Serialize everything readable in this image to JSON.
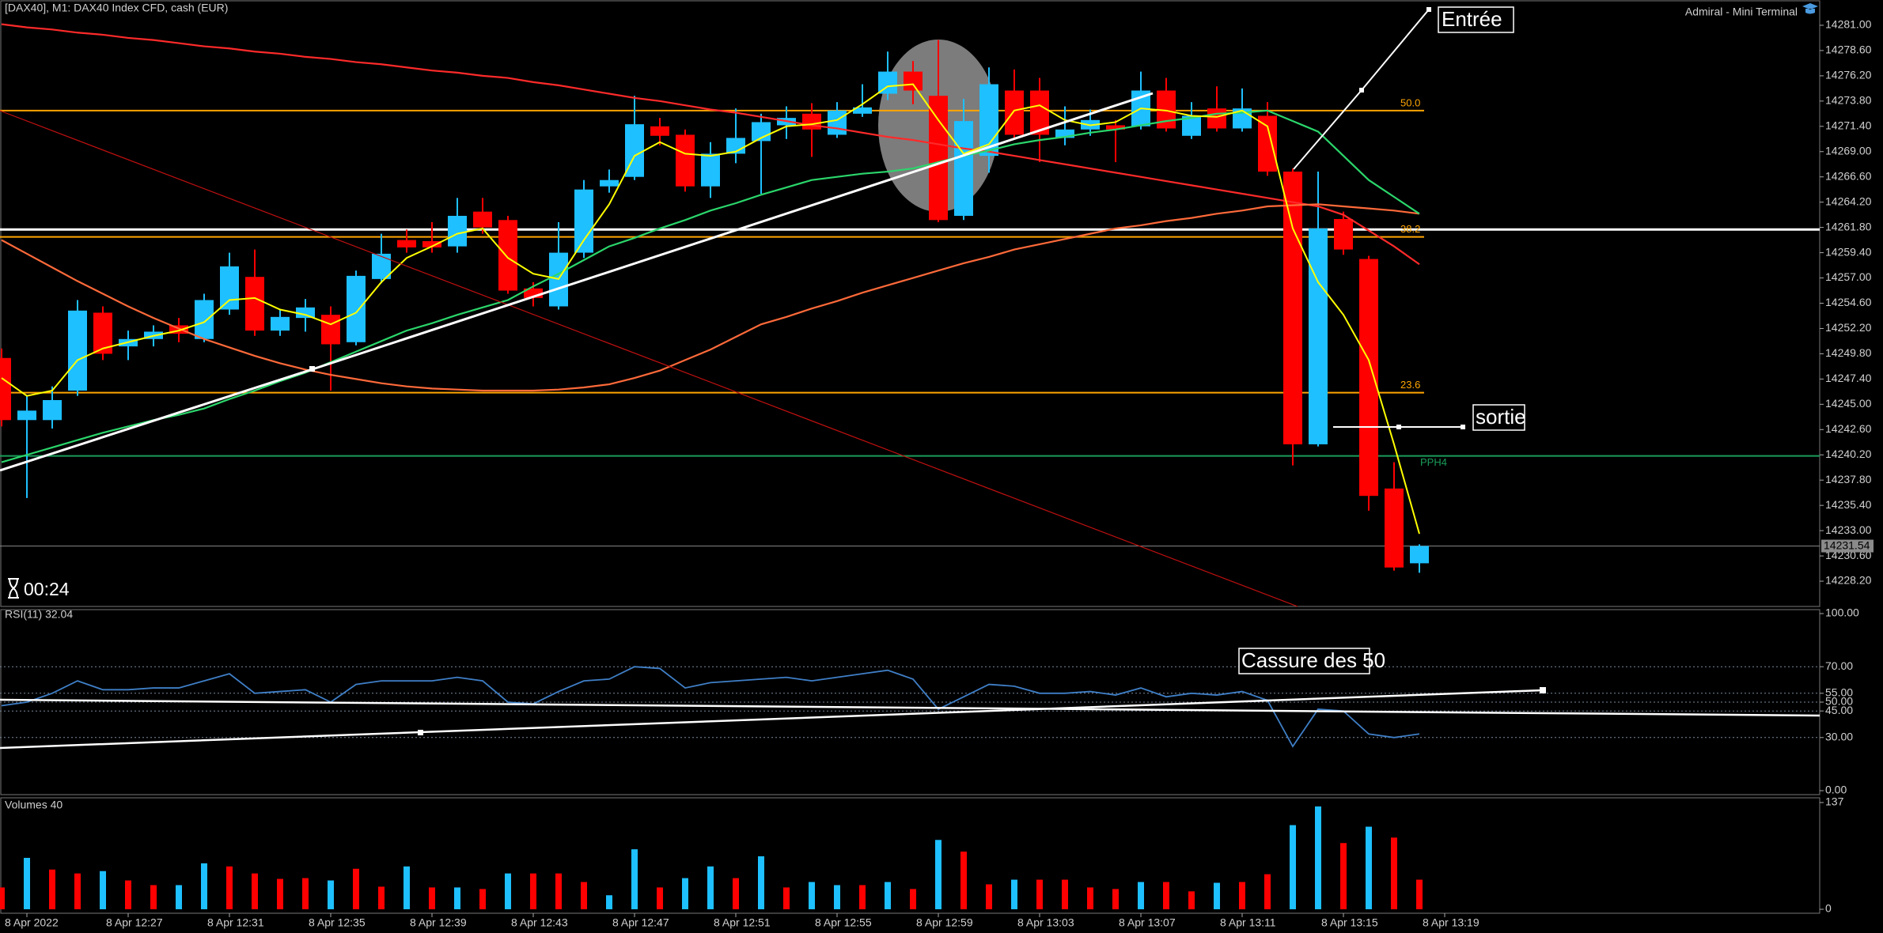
{
  "terminal_label": "Admiral - Mini Terminal",
  "timer": "00:24",
  "annotations": [
    {
      "text": "Entrée"
    },
    {
      "text": "sortie"
    },
    {
      "text": "Cassure des 50"
    }
  ],
  "chart_data": [
    {
      "type": "candlestick",
      "title": "[DAX40], M1:  DAX40 Index CFD, cash (EUR)",
      "up_color": "#1ec0ff",
      "down_color": "#ff0000",
      "open": [
        14249.4,
        14243.5,
        14243.5,
        14246.3,
        14253.7,
        14250.5,
        14251.2,
        14252.5,
        14251.2,
        14254.0,
        14257.1,
        14252.0,
        14253.2,
        14253.5,
        14250.9,
        14256.9,
        14260.6,
        14260.5,
        14260.0,
        14263.3,
        14262.5,
        14256.0,
        14254.3,
        14259.4,
        14265.7,
        14266.6,
        14271.4,
        14270.6,
        14265.7,
        14268.8,
        14270.0,
        14271.5,
        14272.6,
        14270.6,
        14272.6,
        14274.5,
        14276.6,
        14274.3,
        14262.9,
        14268.6,
        14274.8,
        14274.8,
        14270.3,
        14271.1,
        14271.5,
        14271.4,
        14274.8,
        14270.5,
        14273.1,
        14271.2,
        14272.4,
        14267.1,
        14241.2,
        14262.6,
        14258.8,
        14237.0,
        14229.9,
        null
      ],
      "high": [
        14250.3,
        14245.8,
        14246.7,
        14254.9,
        14254.3,
        14252.0,
        14252.5,
        14253.2,
        14255.5,
        14259.4,
        14259.7,
        14254.0,
        14255.0,
        14254.3,
        14257.7,
        14261.2,
        14261.6,
        14262.3,
        14264.6,
        14264.6,
        14262.9,
        14256.6,
        14262.3,
        14266.3,
        14267.3,
        14274.3,
        14272.2,
        14271.1,
        14269.9,
        14273.1,
        14272.6,
        14273.3,
        14273.6,
        14273.7,
        14275.4,
        14278.5,
        14277.6,
        14279.6,
        14274.0,
        14277.0,
        14276.8,
        14276.0,
        14273.3,
        14273.0,
        14272.0,
        14276.6,
        14276.0,
        14273.7,
        14275.2,
        14275.0,
        14273.7,
        14267.4,
        14267.1,
        14263.3,
        14259.1,
        14239.5,
        14231.7,
        null
      ],
      "low": [
        14242.9,
        14236.1,
        14242.7,
        14245.8,
        14249.2,
        14249.2,
        14250.5,
        14250.9,
        14250.9,
        14253.5,
        14251.5,
        14251.5,
        14251.9,
        14246.3,
        14250.6,
        14256.5,
        14259.4,
        14259.4,
        14259.4,
        14261.2,
        14255.5,
        14254.3,
        14254.0,
        14258.9,
        14265.1,
        14266.3,
        14269.6,
        14265.2,
        14264.6,
        14267.9,
        14265.0,
        14270.2,
        14268.5,
        14270.3,
        14272.3,
        14273.9,
        14273.5,
        14262.3,
        14262.5,
        14267.0,
        14270.3,
        14268.0,
        14269.6,
        14270.5,
        14268.0,
        14271.1,
        14270.9,
        14270.2,
        14270.9,
        14270.9,
        14266.7,
        14239.2,
        14241.0,
        14259.2,
        14234.9,
        14229.2,
        14229.0,
        null
      ],
      "close": [
        14243.5,
        14244.4,
        14245.4,
        14253.9,
        14249.8,
        14251.2,
        14251.9,
        14251.7,
        14254.9,
        14258.1,
        14252.0,
        14253.3,
        14254.2,
        14250.7,
        14257.2,
        14259.3,
        14259.9,
        14259.9,
        14262.9,
        14261.8,
        14255.8,
        14255.1,
        14259.4,
        14265.4,
        14266.3,
        14271.6,
        14270.5,
        14265.7,
        14268.8,
        14270.3,
        14271.8,
        14272.2,
        14271.1,
        14272.9,
        14273.2,
        14276.6,
        14274.8,
        14262.5,
        14271.9,
        14275.4,
        14270.6,
        14270.6,
        14271.1,
        14272.0,
        14271.1,
        14274.8,
        14271.2,
        14272.4,
        14271.2,
        14273.1,
        14267.1,
        14241.2,
        14261.7,
        14259.7,
        14236.3,
        14229.5,
        14231.54,
        null
      ],
      "moving_averages": [
        {
          "color": "#ff2a2a",
          "values": [
            14281.1,
            14280.8,
            14280.6,
            14280.3,
            14280.1,
            14279.8,
            14279.6,
            14279.3,
            14279.0,
            14278.8,
            14278.5,
            14278.3,
            14278.0,
            14277.8,
            14277.5,
            14277.3,
            14277.0,
            14276.7,
            14276.5,
            14276.2,
            14276.0,
            14275.6,
            14275.3,
            14274.9,
            14274.5,
            14274.1,
            14273.8,
            14273.4,
            14273.0,
            14272.7,
            14272.3,
            14271.9,
            14271.5,
            14271.2,
            14270.8,
            14270.4,
            14270.1,
            14269.7,
            14269.3,
            14269.0,
            14268.6,
            14268.2,
            14267.8,
            14267.4,
            14267.0,
            14266.6,
            14266.2,
            14265.8,
            14265.4,
            14265.0,
            14264.6,
            14264.2,
            14263.8,
            14263.0,
            14261.5,
            14260.0,
            14258.3,
            null
          ]
        },
        {
          "color": "#ff6a3a",
          "values": [
            14260.6,
            14259.3,
            14258.0,
            14256.7,
            14255.5,
            14254.3,
            14253.2,
            14252.2,
            14251.2,
            14250.4,
            14249.6,
            14248.9,
            14248.3,
            14247.8,
            14247.4,
            14247.0,
            14246.7,
            14246.5,
            14246.4,
            14246.3,
            14246.3,
            14246.3,
            14246.4,
            14246.6,
            14246.9,
            14247.5,
            14248.2,
            14249.2,
            14250.2,
            14251.4,
            14252.6,
            14253.3,
            14254.1,
            14254.8,
            14255.6,
            14256.3,
            14257.0,
            14257.7,
            14258.4,
            14259.0,
            14259.7,
            14260.2,
            14260.7,
            14261.2,
            14261.7,
            14262.0,
            14262.4,
            14262.7,
            14263.1,
            14263.4,
            14263.8,
            14263.9,
            14264.0,
            14263.8,
            14263.6,
            14263.4,
            14263.1,
            null
          ]
        },
        {
          "color": "#2bd66b",
          "values": [
            14239.5,
            14240.2,
            14240.9,
            14241.6,
            14242.3,
            14242.9,
            14243.5,
            14244.0,
            14244.6,
            14245.5,
            14246.3,
            14247.2,
            14248.0,
            14249.0,
            14250.0,
            14251.0,
            14252.0,
            14252.7,
            14253.5,
            14254.2,
            14254.9,
            14256.2,
            14257.4,
            14258.7,
            14260.0,
            14260.8,
            14261.7,
            14262.5,
            14263.4,
            14264.1,
            14264.9,
            14265.6,
            14266.3,
            14266.6,
            14266.9,
            14267.1,
            14267.4,
            14268.0,
            14268.6,
            14269.1,
            14269.7,
            14270.1,
            14270.4,
            14270.8,
            14271.1,
            14271.5,
            14271.9,
            14272.2,
            14272.6,
            14272.7,
            14272.9,
            14271.9,
            14270.9,
            14268.6,
            14266.3,
            14264.7,
            14263.1,
            null
          ]
        },
        {
          "color": "#ffff00",
          "values": [
            14247.5,
            14245.8,
            14246.3,
            14249.2,
            14250.3,
            14250.9,
            14251.5,
            14252.0,
            14252.8,
            14254.9,
            14255.1,
            14254.0,
            14253.5,
            14252.6,
            14253.7,
            14256.6,
            14258.9,
            14260.0,
            14261.2,
            14261.7,
            14258.9,
            14257.4,
            14256.9,
            14260.6,
            14264.0,
            14268.6,
            14269.9,
            14268.8,
            14268.6,
            14269.0,
            14270.3,
            14271.4,
            14271.6,
            14272.0,
            14273.5,
            14275.2,
            14275.4,
            14272.0,
            14268.8,
            14269.7,
            14272.9,
            14273.4,
            14272.0,
            14271.5,
            14271.8,
            14273.1,
            14272.9,
            14272.4,
            14272.3,
            14272.9,
            14271.4,
            14261.7,
            14256.6,
            14253.5,
            14249.2,
            14241.2,
            14232.7,
            null
          ]
        }
      ],
      "levels": [
        {
          "value": 14272.9,
          "label": "50.0",
          "color": "#ffa500"
        },
        {
          "value": 14261.6,
          "color": "#ffffff"
        },
        {
          "value": 14260.9,
          "label": "38.2",
          "color": "#ffa500"
        },
        {
          "value": 14246.1,
          "label": "23.6",
          "color": "#ffa500"
        },
        {
          "value": 14240.1,
          "label": "PPH4",
          "color": "#1a9c5a"
        }
      ],
      "last_price": 14231.54,
      "ylim": [
        14225.8,
        14283.4
      ],
      "yticks": [
        {
          "value": 14281,
          "label": "14281.00"
        },
        {
          "value": 14278.6,
          "label": "14278.60"
        },
        {
          "value": 14276.2,
          "label": "14276.20"
        },
        {
          "value": 14273.8,
          "label": "14273.80"
        },
        {
          "value": 14271.4,
          "label": "14271.40"
        },
        {
          "value": 14269,
          "label": "14269.00"
        },
        {
          "value": 14266.6,
          "label": "14266.60"
        },
        {
          "value": 14264.2,
          "label": "14264.20"
        },
        {
          "value": 14261.8,
          "label": "14261.80"
        },
        {
          "value": 14259.4,
          "label": "14259.40"
        },
        {
          "value": 14257,
          "label": "14257.00"
        },
        {
          "value": 14254.6,
          "label": "14254.60"
        },
        {
          "value": 14252.2,
          "label": "14252.20"
        },
        {
          "value": 14249.8,
          "label": "14249.80"
        },
        {
          "value": 14247.4,
          "label": "14247.40"
        },
        {
          "value": 14245,
          "label": "14245.00"
        },
        {
          "value": 14242.6,
          "label": "14242.60"
        },
        {
          "value": 14240.2,
          "label": "14240.20"
        },
        {
          "value": 14237.8,
          "label": "14237.80"
        },
        {
          "value": 14235.4,
          "label": "14235.40"
        },
        {
          "value": 14233,
          "label": "14233.00"
        },
        {
          "value": 14230.6,
          "label": "14230.60"
        },
        {
          "value": 14228.2,
          "label": "14228.20"
        }
      ]
    },
    {
      "type": "line",
      "title": "RSI(11) 32.04",
      "color": "#3f7fc7",
      "values": [
        48,
        50,
        55,
        62,
        57,
        57,
        58,
        58,
        62,
        66,
        55,
        56,
        57,
        50,
        60,
        62,
        62,
        62,
        64,
        62,
        50,
        49,
        56,
        62,
        63,
        70,
        69,
        58,
        61,
        62,
        63,
        64,
        62,
        64,
        66,
        68,
        63,
        46,
        53,
        60,
        59,
        55,
        55,
        56,
        54,
        58,
        53,
        55,
        54,
        56,
        51,
        25,
        46,
        45,
        32,
        30,
        32.04,
        null
      ],
      "ylim": [
        0,
        100
      ],
      "yticks": [
        {
          "value": 100,
          "label": "100.00"
        },
        {
          "value": 70,
          "label": "70.00"
        },
        {
          "value": 55,
          "label": "55.00"
        },
        {
          "value": 50,
          "label": "50.00"
        },
        {
          "value": 45,
          "label": "45.00"
        },
        {
          "value": 30,
          "label": "30.00"
        },
        {
          "value": 0,
          "label": "0.00"
        }
      ]
    },
    {
      "type": "bar",
      "title": "Volumes 40",
      "categories": [
        null,
        "8 Apr 2022",
        null,
        null,
        null,
        "8 Apr 12:27",
        null,
        null,
        null,
        "8 Apr 12:31",
        null,
        null,
        null,
        "8 Apr 12:35",
        null,
        null,
        null,
        "8 Apr 12:39",
        null,
        null,
        null,
        "8 Apr 12:43",
        null,
        null,
        null,
        "8 Apr 12:47",
        null,
        null,
        null,
        "8 Apr 12:51",
        null,
        null,
        null,
        "8 Apr 12:55",
        null,
        null,
        null,
        "8 Apr 12:59",
        null,
        null,
        null,
        "8 Apr 13:03",
        null,
        null,
        null,
        "8 Apr 13:07",
        null,
        null,
        null,
        "8 Apr 13:11",
        null,
        null,
        null,
        "8 Apr 13:15",
        null,
        null,
        null,
        "8 Apr 13:19"
      ],
      "values": [
        28,
        66,
        51,
        46,
        49,
        37,
        31,
        31,
        59,
        55,
        46,
        39,
        40,
        37,
        52,
        29,
        55,
        28,
        28,
        26,
        46,
        46,
        46,
        35,
        18,
        77,
        28,
        40,
        55,
        40,
        68,
        28,
        35,
        31,
        31,
        35,
        26,
        89,
        74,
        32,
        38,
        38,
        38,
        28,
        26,
        35,
        35,
        23,
        34,
        35,
        45,
        108,
        132,
        85,
        106,
        92,
        38,
        null
      ],
      "colors": [
        "#f00",
        "#1ec0ff",
        "#f00",
        "#f00",
        "#1ec0ff",
        "#f00",
        "#f00",
        "#1ec0ff",
        "#1ec0ff",
        "#f00",
        "#f00",
        "#f00",
        "#f00",
        "#1ec0ff",
        "#f00",
        "#f00",
        "#1ec0ff",
        "#f00",
        "#1ec0ff",
        "#f00",
        "#1ec0ff",
        "#f00",
        "#f00",
        "#f00",
        "#1ec0ff",
        "#1ec0ff",
        "#f00",
        "#1ec0ff",
        "#1ec0ff",
        "#f00",
        "#1ec0ff",
        "#f00",
        "#1ec0ff",
        "#1ec0ff",
        "#f00",
        "#1ec0ff",
        "#f00",
        "#1ec0ff",
        "#f00",
        "#f00",
        "#1ec0ff",
        "#f00",
        "#f00",
        "#f00",
        "#f00",
        "#1ec0ff",
        "#f00",
        "#f00",
        "#1ec0ff",
        "#f00",
        "#f00",
        "#1ec0ff",
        "#1ec0ff",
        "#f00",
        "#1ec0ff",
        "#f00",
        "#f00",
        null
      ],
      "ylim": [
        0,
        137
      ],
      "yticks": [
        0,
        137
      ]
    }
  ]
}
